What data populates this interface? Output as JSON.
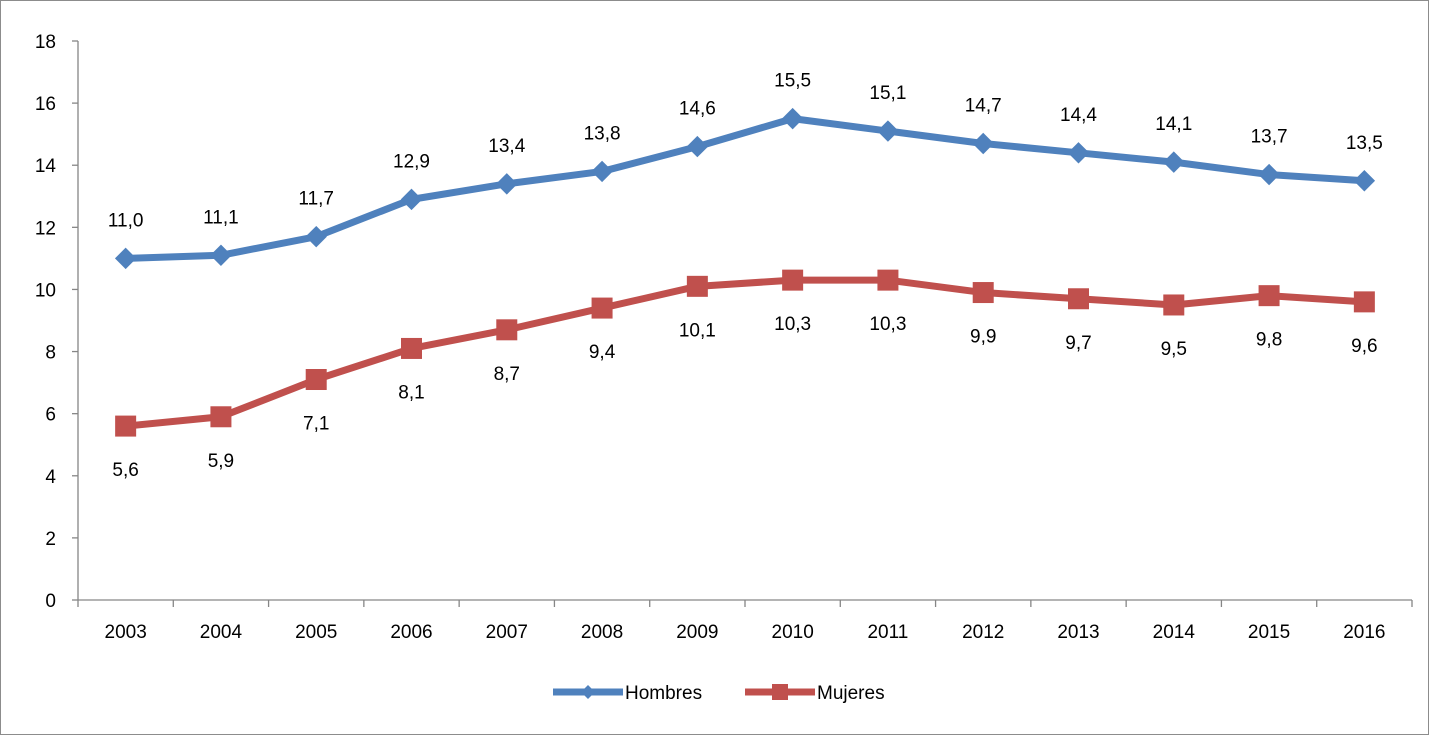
{
  "chart_data": {
    "type": "line",
    "title": "",
    "xlabel": "",
    "ylabel": "",
    "x": [
      "2003",
      "2004",
      "2005",
      "2006",
      "2007",
      "2008",
      "2009",
      "2010",
      "2011",
      "2012",
      "2013",
      "2014",
      "2015",
      "2016"
    ],
    "ylim": [
      0,
      18
    ],
    "yticks": [
      "0",
      "2",
      "4",
      "6",
      "8",
      "10",
      "12",
      "14",
      "16",
      "18"
    ],
    "grid": false,
    "legend_position": "bottom",
    "series": [
      {
        "name": "Hombres",
        "color": "#4f81bd",
        "marker": "diamond",
        "values": [
          11.0,
          11.1,
          11.7,
          12.9,
          13.4,
          13.8,
          14.6,
          15.5,
          15.1,
          14.7,
          14.4,
          14.1,
          13.7,
          13.5
        ],
        "labels": [
          "11,0",
          "11,1",
          "11,7",
          "12,9",
          "13,4",
          "13,8",
          "14,6",
          "15,5",
          "15,1",
          "14,7",
          "14,4",
          "14,1",
          "13,7",
          "13,5"
        ]
      },
      {
        "name": "Mujeres",
        "color": "#c0504d",
        "marker": "square",
        "values": [
          5.6,
          5.9,
          7.1,
          8.1,
          8.7,
          9.4,
          10.1,
          10.3,
          10.3,
          9.9,
          9.7,
          9.5,
          9.8,
          9.6
        ],
        "labels": [
          "5,6",
          "5,9",
          "7,1",
          "8,1",
          "8,7",
          "9,4",
          "10,1",
          "10,3",
          "10,3",
          "9,9",
          "9,7",
          "9,5",
          "9,8",
          "9,6"
        ]
      }
    ]
  }
}
